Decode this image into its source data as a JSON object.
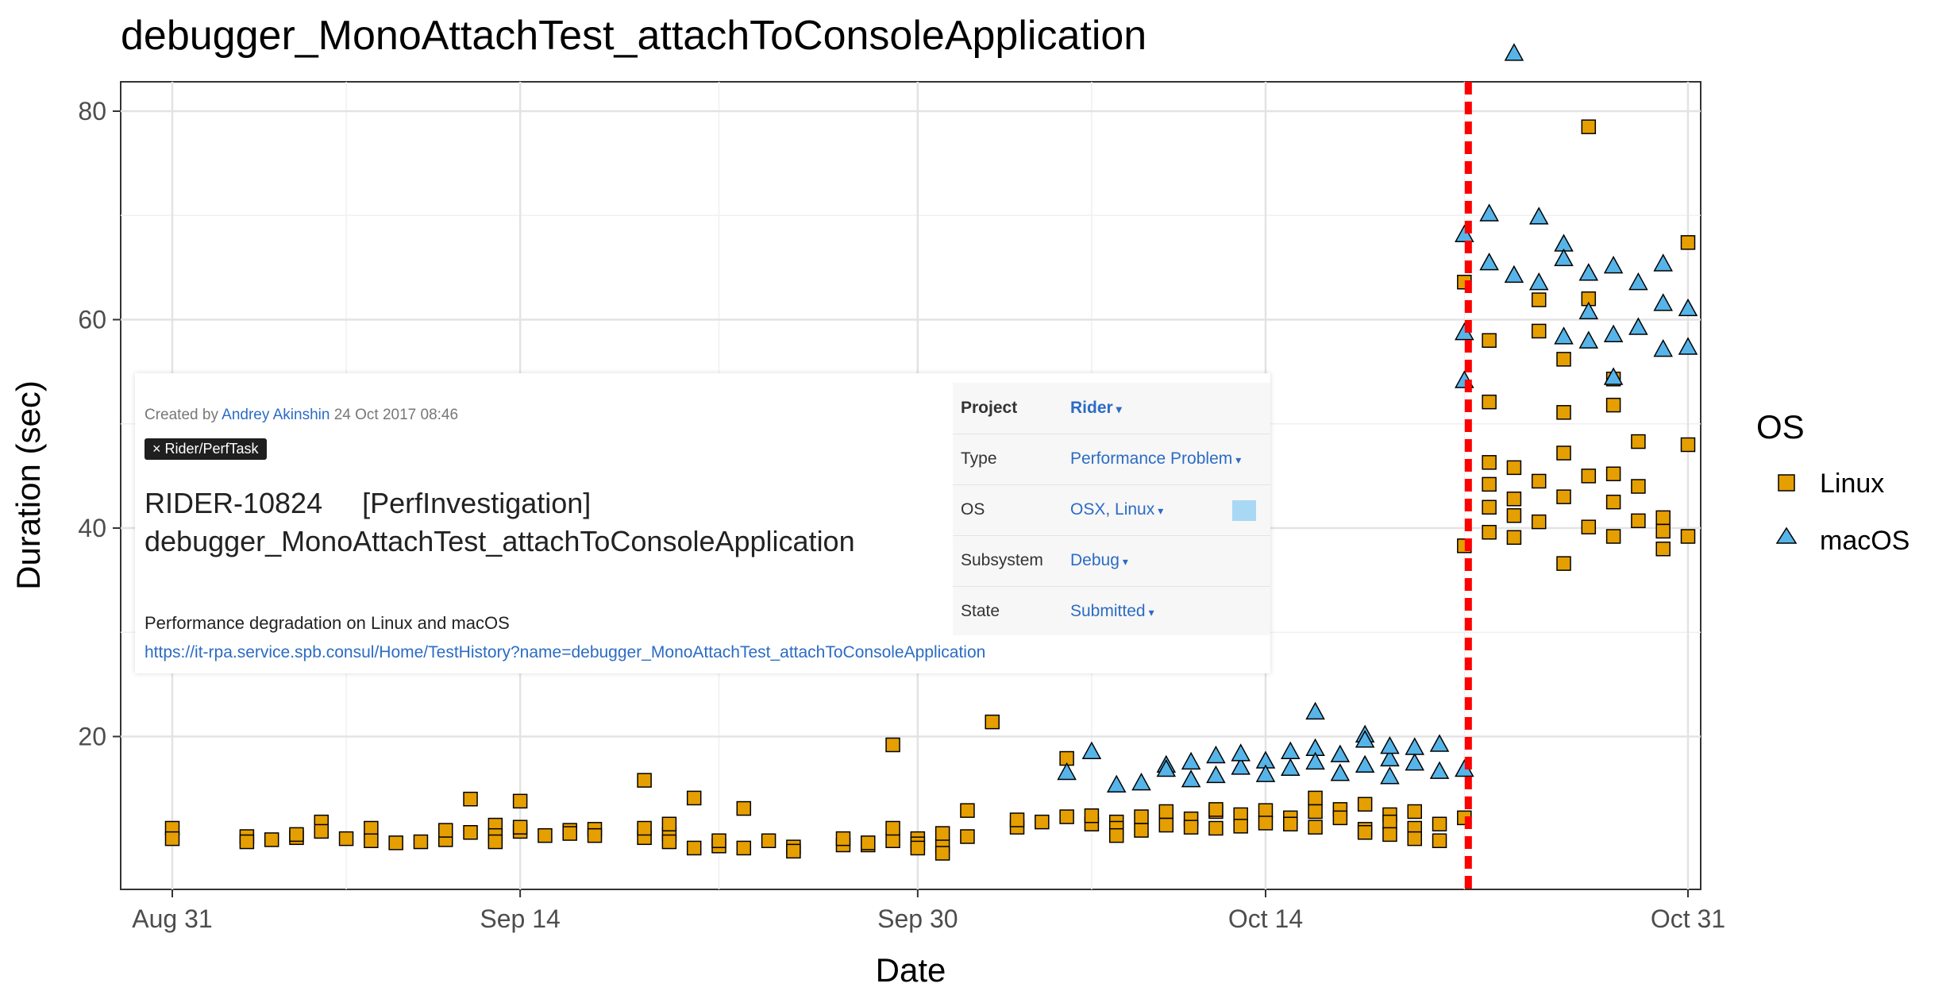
{
  "chart_data": {
    "type": "scatter",
    "title": "debugger_MonoAttachTest_attachToConsoleApplication",
    "xlabel": "Date",
    "ylabel": "Duration (sec)",
    "x_ticks": [
      "Aug 31",
      "Sep 14",
      "Sep 30",
      "Oct 14",
      "Oct 31"
    ],
    "y_ticks": [
      "20",
      "40",
      "60",
      "80"
    ],
    "xlim": [
      "2017-08-31",
      "2017-10-31"
    ],
    "ylim": [
      5,
      89
    ],
    "grid": true,
    "legend": {
      "title": "OS",
      "position": "right"
    },
    "vline": {
      "x": "2017-10-22",
      "color": "#ff0000",
      "style": "dashed"
    },
    "series": [
      {
        "name": "Linux",
        "marker": "square",
        "color": "#e69f00",
        "points": [
          [
            "2017-08-31",
            11.2
          ],
          [
            "2017-08-31",
            10.2
          ],
          [
            "2017-09-03",
            10.4
          ],
          [
            "2017-09-03",
            9.9
          ],
          [
            "2017-09-04",
            10.1
          ],
          [
            "2017-09-05",
            10.3
          ],
          [
            "2017-09-05",
            10.6
          ],
          [
            "2017-09-06",
            11.8
          ],
          [
            "2017-09-06",
            10.9
          ],
          [
            "2017-09-07",
            10.2
          ],
          [
            "2017-09-08",
            11.2
          ],
          [
            "2017-09-08",
            10.0
          ],
          [
            "2017-09-09",
            9.8
          ],
          [
            "2017-09-10",
            9.9
          ],
          [
            "2017-09-11",
            10.1
          ],
          [
            "2017-09-11",
            11.0
          ],
          [
            "2017-09-12",
            14.0
          ],
          [
            "2017-09-12",
            10.8
          ],
          [
            "2017-09-13",
            11.5
          ],
          [
            "2017-09-13",
            10.5
          ],
          [
            "2017-09-13",
            9.9
          ],
          [
            "2017-09-14",
            10.9
          ],
          [
            "2017-09-14",
            11.3
          ],
          [
            "2017-09-14",
            13.8
          ],
          [
            "2017-09-15",
            10.5
          ],
          [
            "2017-09-16",
            11.0
          ],
          [
            "2017-09-16",
            10.7
          ],
          [
            "2017-09-17",
            11.1
          ],
          [
            "2017-09-17",
            10.5
          ],
          [
            "2017-09-19",
            10.3
          ],
          [
            "2017-09-19",
            11.2
          ],
          [
            "2017-09-19",
            15.8
          ],
          [
            "2017-09-20",
            10.6
          ],
          [
            "2017-09-20",
            11.6
          ],
          [
            "2017-09-20",
            9.9
          ],
          [
            "2017-09-21",
            9.3
          ],
          [
            "2017-09-21",
            14.1
          ],
          [
            "2017-09-22",
            9.5
          ],
          [
            "2017-09-22",
            10.0
          ],
          [
            "2017-09-23",
            13.1
          ],
          [
            "2017-09-23",
            9.3
          ],
          [
            "2017-09-24",
            10.0
          ],
          [
            "2017-09-25",
            9.4
          ],
          [
            "2017-09-25",
            9.0
          ],
          [
            "2017-09-27",
            9.6
          ],
          [
            "2017-09-27",
            10.2
          ],
          [
            "2017-09-28",
            9.6
          ],
          [
            "2017-09-28",
            9.8
          ],
          [
            "2017-09-29",
            10.0
          ],
          [
            "2017-09-29",
            11.2
          ],
          [
            "2017-09-30",
            10.2
          ],
          [
            "2017-09-30",
            9.7
          ],
          [
            "2017-09-30",
            9.3
          ],
          [
            "2017-10-01",
            9.5
          ],
          [
            "2017-10-01",
            10.7
          ],
          [
            "2017-09-29",
            19.2
          ],
          [
            "2017-10-01",
            8.8
          ],
          [
            "2017-10-02",
            10.4
          ],
          [
            "2017-10-02",
            12.9
          ],
          [
            "2017-10-03",
            21.4
          ],
          [
            "2017-10-04",
            11.3
          ],
          [
            "2017-10-04",
            12.0
          ],
          [
            "2017-10-05",
            11.8
          ],
          [
            "2017-10-06",
            12.3
          ],
          [
            "2017-10-06",
            17.9
          ],
          [
            "2017-10-07",
            11.6
          ],
          [
            "2017-10-07",
            12.4
          ],
          [
            "2017-10-08",
            11.8
          ],
          [
            "2017-10-08",
            11.2
          ],
          [
            "2017-10-08",
            10.5
          ],
          [
            "2017-10-09",
            12.3
          ],
          [
            "2017-10-09",
            11.0
          ],
          [
            "2017-10-10",
            12.8
          ],
          [
            "2017-10-10",
            11.5
          ],
          [
            "2017-10-11",
            12.1
          ],
          [
            "2017-10-11",
            11.3
          ],
          [
            "2017-10-12",
            12.8
          ],
          [
            "2017-10-12",
            11.2
          ],
          [
            "2017-10-12",
            13.0
          ],
          [
            "2017-10-13",
            12.5
          ],
          [
            "2017-10-13",
            11.4
          ],
          [
            "2017-10-14",
            12.9
          ],
          [
            "2017-10-14",
            11.7
          ],
          [
            "2017-10-15",
            12.2
          ],
          [
            "2017-10-15",
            11.6
          ],
          [
            "2017-10-16",
            14.1
          ],
          [
            "2017-10-16",
            12.8
          ],
          [
            "2017-10-16",
            11.3
          ],
          [
            "2017-10-17",
            13.0
          ],
          [
            "2017-10-17",
            12.2
          ],
          [
            "2017-10-18",
            13.5
          ],
          [
            "2017-10-18",
            11.1
          ],
          [
            "2017-10-18",
            10.8
          ],
          [
            "2017-10-19",
            12.5
          ],
          [
            "2017-10-19",
            11.8
          ],
          [
            "2017-10-19",
            10.6
          ],
          [
            "2017-10-20",
            11.2
          ],
          [
            "2017-10-20",
            10.2
          ],
          [
            "2017-10-20",
            12.8
          ],
          [
            "2017-10-21",
            10.0
          ],
          [
            "2017-10-21",
            11.6
          ],
          [
            "2017-10-22",
            12.2
          ],
          [
            "2017-10-22",
            38.3
          ],
          [
            "2017-10-22",
            63.6
          ],
          [
            "2017-10-23",
            58.0
          ],
          [
            "2017-10-23",
            52.1
          ],
          [
            "2017-10-23",
            46.3
          ],
          [
            "2017-10-23",
            44.2
          ],
          [
            "2017-10-23",
            42.0
          ],
          [
            "2017-10-23",
            39.6
          ],
          [
            "2017-10-24",
            45.8
          ],
          [
            "2017-10-24",
            42.8
          ],
          [
            "2017-10-24",
            41.2
          ],
          [
            "2017-10-24",
            39.1
          ],
          [
            "2017-10-25",
            61.9
          ],
          [
            "2017-10-25",
            58.9
          ],
          [
            "2017-10-25",
            44.5
          ],
          [
            "2017-10-25",
            40.6
          ],
          [
            "2017-10-26",
            56.2
          ],
          [
            "2017-10-26",
            51.1
          ],
          [
            "2017-10-26",
            47.2
          ],
          [
            "2017-10-26",
            43.0
          ],
          [
            "2017-10-26",
            36.6
          ],
          [
            "2017-10-27",
            78.5
          ],
          [
            "2017-10-27",
            62.0
          ],
          [
            "2017-10-27",
            45.0
          ],
          [
            "2017-10-27",
            40.1
          ],
          [
            "2017-10-28",
            54.3
          ],
          [
            "2017-10-28",
            51.8
          ],
          [
            "2017-10-28",
            45.2
          ],
          [
            "2017-10-28",
            42.5
          ],
          [
            "2017-10-28",
            39.2
          ],
          [
            "2017-10-29",
            48.3
          ],
          [
            "2017-10-29",
            44.0
          ],
          [
            "2017-10-29",
            40.7
          ],
          [
            "2017-10-30",
            41.0
          ],
          [
            "2017-10-30",
            38.0
          ],
          [
            "2017-10-30",
            39.7
          ],
          [
            "2017-10-31",
            67.4
          ],
          [
            "2017-10-31",
            48.0
          ],
          [
            "2017-10-31",
            39.2
          ]
        ]
      },
      {
        "name": "macOS",
        "marker": "triangle",
        "color": "#56b4e9",
        "points": [
          [
            "2017-10-06",
            16.5
          ],
          [
            "2017-10-07",
            18.5
          ],
          [
            "2017-10-08",
            15.3
          ],
          [
            "2017-10-09",
            15.5
          ],
          [
            "2017-10-10",
            17.2
          ],
          [
            "2017-10-10",
            16.8
          ],
          [
            "2017-10-11",
            15.8
          ],
          [
            "2017-10-11",
            17.5
          ],
          [
            "2017-10-12",
            16.2
          ],
          [
            "2017-10-12",
            18.1
          ],
          [
            "2017-10-13",
            17.0
          ],
          [
            "2017-10-13",
            18.3
          ],
          [
            "2017-10-14",
            17.6
          ],
          [
            "2017-10-14",
            16.3
          ],
          [
            "2017-10-15",
            18.5
          ],
          [
            "2017-10-15",
            16.9
          ],
          [
            "2017-10-16",
            22.3
          ],
          [
            "2017-10-16",
            18.8
          ],
          [
            "2017-10-16",
            17.5
          ],
          [
            "2017-10-17",
            16.4
          ],
          [
            "2017-10-17",
            18.2
          ],
          [
            "2017-10-18",
            17.2
          ],
          [
            "2017-10-18",
            20.1
          ],
          [
            "2017-10-18",
            19.6
          ],
          [
            "2017-10-19",
            17.8
          ],
          [
            "2017-10-19",
            16.1
          ],
          [
            "2017-10-19",
            19.0
          ],
          [
            "2017-10-20",
            17.4
          ],
          [
            "2017-10-20",
            18.9
          ],
          [
            "2017-10-21",
            16.6
          ],
          [
            "2017-10-21",
            19.2
          ],
          [
            "2017-10-22",
            16.8
          ],
          [
            "2017-10-22",
            58.7
          ],
          [
            "2017-10-22",
            68.1
          ],
          [
            "2017-10-22",
            54.1
          ],
          [
            "2017-10-23",
            65.4
          ],
          [
            "2017-10-23",
            70.1
          ],
          [
            "2017-10-24",
            64.2
          ],
          [
            "2017-10-24",
            85.5
          ],
          [
            "2017-10-25",
            69.8
          ],
          [
            "2017-10-25",
            63.5
          ],
          [
            "2017-10-26",
            67.2
          ],
          [
            "2017-10-26",
            58.3
          ],
          [
            "2017-10-26",
            65.8
          ],
          [
            "2017-10-27",
            64.4
          ],
          [
            "2017-10-27",
            60.7
          ],
          [
            "2017-10-27",
            57.9
          ],
          [
            "2017-10-28",
            65.1
          ],
          [
            "2017-10-28",
            58.5
          ],
          [
            "2017-10-28",
            54.4
          ],
          [
            "2017-10-29",
            63.5
          ],
          [
            "2017-10-29",
            59.2
          ],
          [
            "2017-10-30",
            65.3
          ],
          [
            "2017-10-30",
            57.1
          ],
          [
            "2017-10-30",
            61.5
          ],
          [
            "2017-10-31",
            61.0
          ],
          [
            "2017-10-31",
            57.3
          ]
        ]
      }
    ]
  },
  "issue_card": {
    "created_prefix": "Created by ",
    "author": "Andrey Akinshin",
    "created_date": " 24 Oct 2017 08:46",
    "tag": "× Rider/PerfTask",
    "issue_id": "RIDER-10824",
    "issue_tag": "[PerfInvestigation]",
    "issue_name": "debugger_MonoAttachTest_attachToConsoleApplication",
    "description": "Performance degradation on Linux and macOS",
    "link": "https://it-rpa.service.spb.consul/Home/TestHistory?name=debugger_MonoAttachTest_attachToConsoleApplication",
    "fields": {
      "project_label": "Project",
      "project_value": "Rider",
      "type_label": "Type",
      "type_value": "Performance Problem",
      "os_label": "OS",
      "os_value": "OSX, Linux",
      "subsystem_label": "Subsystem",
      "subsystem_value": "Debug",
      "state_label": "State",
      "state_value": "Submitted"
    }
  }
}
